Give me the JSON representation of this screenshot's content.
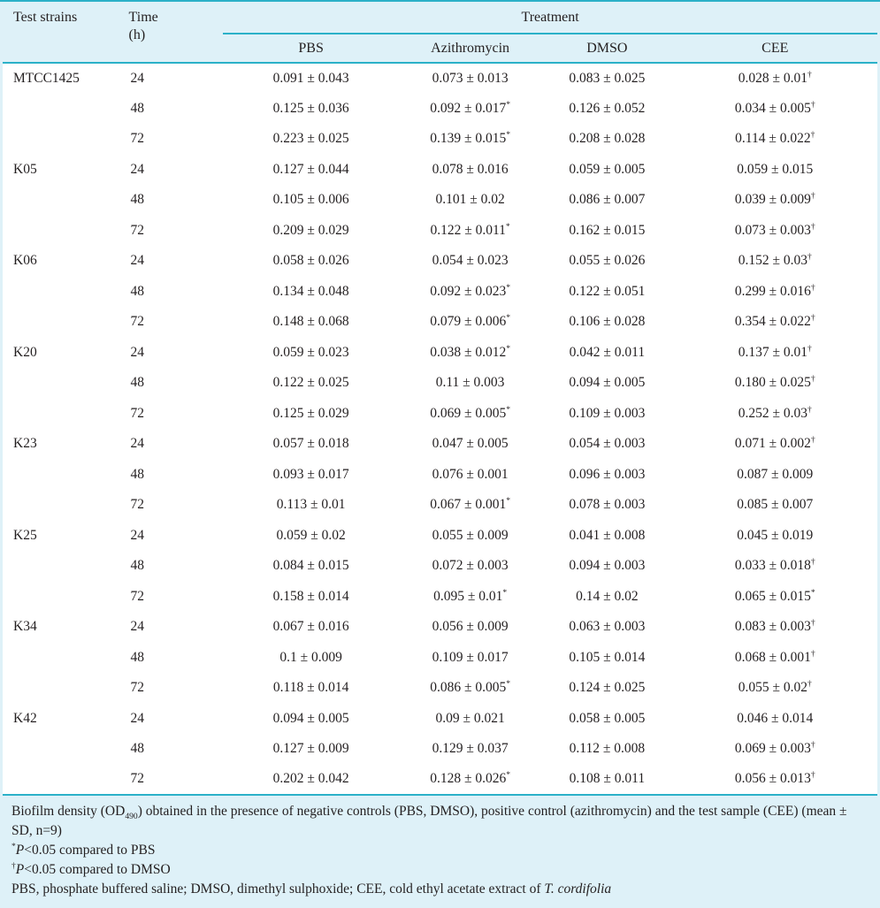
{
  "colors": {
    "accent_teal": "#2bb1c8",
    "panel_bg": "#def1f8",
    "body_bg": "#ffffff",
    "text": "#231f20"
  },
  "table": {
    "header": {
      "strain_col": "Test strains",
      "time_line1": "Time",
      "time_line2": "(h)",
      "treatment_label": "Treatment",
      "treatments": {
        "pbs": "PBS",
        "azithromycin": "Azithromycin",
        "dmso": "DMSO",
        "cee": "CEE"
      }
    },
    "rows": [
      {
        "strain": "MTCC1425",
        "time": "24",
        "values": [
          {
            "v": "0.091 ± 0.043",
            "s": ""
          },
          {
            "v": "0.073 ± 0.013",
            "s": ""
          },
          {
            "v": "0.083 ± 0.025",
            "s": ""
          },
          {
            "v": "0.028 ± 0.01",
            "s": "†"
          }
        ]
      },
      {
        "strain": "",
        "time": "48",
        "values": [
          {
            "v": "0.125 ± 0.036",
            "s": ""
          },
          {
            "v": "0.092 ± 0.017",
            "s": "*"
          },
          {
            "v": "0.126 ± 0.052",
            "s": ""
          },
          {
            "v": "0.034 ± 0.005",
            "s": "†"
          }
        ]
      },
      {
        "strain": "",
        "time": "72",
        "values": [
          {
            "v": "0.223 ± 0.025",
            "s": ""
          },
          {
            "v": "0.139 ± 0.015",
            "s": "*"
          },
          {
            "v": "0.208 ± 0.028",
            "s": ""
          },
          {
            "v": "0.114 ± 0.022",
            "s": "†"
          }
        ]
      },
      {
        "strain": "K05",
        "time": "24",
        "values": [
          {
            "v": "0.127 ± 0.044",
            "s": ""
          },
          {
            "v": "0.078 ± 0.016",
            "s": ""
          },
          {
            "v": "0.059 ± 0.005",
            "s": ""
          },
          {
            "v": "0.059 ± 0.015",
            "s": ""
          }
        ]
      },
      {
        "strain": "",
        "time": "48",
        "values": [
          {
            "v": "0.105 ± 0.006",
            "s": ""
          },
          {
            "v": "0.101 ± 0.02",
            "s": ""
          },
          {
            "v": "0.086 ± 0.007",
            "s": ""
          },
          {
            "v": "0.039 ± 0.009",
            "s": "†"
          }
        ]
      },
      {
        "strain": "",
        "time": "72",
        "values": [
          {
            "v": "0.209 ± 0.029",
            "s": ""
          },
          {
            "v": "0.122 ± 0.011",
            "s": "*"
          },
          {
            "v": "0.162 ± 0.015",
            "s": ""
          },
          {
            "v": "0.073 ± 0.003",
            "s": "†"
          }
        ]
      },
      {
        "strain": "K06",
        "time": "24",
        "values": [
          {
            "v": "0.058 ± 0.026",
            "s": ""
          },
          {
            "v": "0.054 ± 0.023",
            "s": ""
          },
          {
            "v": "0.055 ± 0.026",
            "s": ""
          },
          {
            "v": "0.152 ± 0.03",
            "s": "†"
          }
        ]
      },
      {
        "strain": "",
        "time": "48",
        "values": [
          {
            "v": "0.134 ± 0.048",
            "s": ""
          },
          {
            "v": "0.092 ± 0.023",
            "s": "*"
          },
          {
            "v": "0.122 ± 0.051",
            "s": ""
          },
          {
            "v": "0.299 ± 0.016",
            "s": "†"
          }
        ]
      },
      {
        "strain": "",
        "time": "72",
        "values": [
          {
            "v": "0.148 ± 0.068",
            "s": ""
          },
          {
            "v": "0.079 ± 0.006",
            "s": "*"
          },
          {
            "v": "0.106 ± 0.028",
            "s": ""
          },
          {
            "v": "0.354 ± 0.022",
            "s": "†"
          }
        ]
      },
      {
        "strain": "K20",
        "time": "24",
        "values": [
          {
            "v": "0.059 ± 0.023",
            "s": ""
          },
          {
            "v": "0.038 ± 0.012",
            "s": "*"
          },
          {
            "v": "0.042 ± 0.011",
            "s": ""
          },
          {
            "v": "0.137 ± 0.01",
            "s": "†"
          }
        ]
      },
      {
        "strain": "",
        "time": "48",
        "values": [
          {
            "v": "0.122 ± 0.025",
            "s": ""
          },
          {
            "v": "0.11 ± 0.003",
            "s": ""
          },
          {
            "v": "0.094 ± 0.005",
            "s": ""
          },
          {
            "v": "0.180 ± 0.025",
            "s": "†"
          }
        ]
      },
      {
        "strain": "",
        "time": "72",
        "values": [
          {
            "v": "0.125 ± 0.029",
            "s": ""
          },
          {
            "v": "0.069 ± 0.005",
            "s": "*"
          },
          {
            "v": "0.109 ± 0.003",
            "s": ""
          },
          {
            "v": "0.252 ± 0.03",
            "s": "†"
          }
        ]
      },
      {
        "strain": "K23",
        "time": "24",
        "values": [
          {
            "v": "0.057 ± 0.018",
            "s": ""
          },
          {
            "v": "0.047 ± 0.005",
            "s": ""
          },
          {
            "v": "0.054 ± 0.003",
            "s": ""
          },
          {
            "v": "0.071 ± 0.002",
            "s": "†"
          }
        ]
      },
      {
        "strain": "",
        "time": "48",
        "values": [
          {
            "v": "0.093 ± 0.017",
            "s": ""
          },
          {
            "v": "0.076 ± 0.001",
            "s": ""
          },
          {
            "v": "0.096 ± 0.003",
            "s": ""
          },
          {
            "v": "0.087 ± 0.009",
            "s": ""
          }
        ]
      },
      {
        "strain": "",
        "time": "72",
        "values": [
          {
            "v": "0.113 ± 0.01",
            "s": ""
          },
          {
            "v": "0.067 ± 0.001",
            "s": "*"
          },
          {
            "v": "0.078 ± 0.003",
            "s": ""
          },
          {
            "v": "0.085 ± 0.007",
            "s": ""
          }
        ]
      },
      {
        "strain": "K25",
        "time": "24",
        "values": [
          {
            "v": "0.059 ± 0.02",
            "s": ""
          },
          {
            "v": "0.055 ± 0.009",
            "s": ""
          },
          {
            "v": "0.041 ± 0.008",
            "s": ""
          },
          {
            "v": "0.045 ± 0.019",
            "s": ""
          }
        ]
      },
      {
        "strain": "",
        "time": "48",
        "values": [
          {
            "v": "0.084 ± 0.015",
            "s": ""
          },
          {
            "v": "0.072 ± 0.003",
            "s": ""
          },
          {
            "v": "0.094 ± 0.003",
            "s": ""
          },
          {
            "v": "0.033 ± 0.018",
            "s": "†"
          }
        ]
      },
      {
        "strain": "",
        "time": "72",
        "values": [
          {
            "v": "0.158 ± 0.014",
            "s": ""
          },
          {
            "v": "0.095 ± 0.01",
            "s": "*"
          },
          {
            "v": "0.14 ± 0.02",
            "s": ""
          },
          {
            "v": "0.065 ± 0.015",
            "s": "*"
          }
        ]
      },
      {
        "strain": "K34",
        "time": "24",
        "values": [
          {
            "v": "0.067 ± 0.016",
            "s": ""
          },
          {
            "v": "0.056 ± 0.009",
            "s": ""
          },
          {
            "v": "0.063 ± 0.003",
            "s": ""
          },
          {
            "v": "0.083 ± 0.003",
            "s": "†"
          }
        ]
      },
      {
        "strain": "",
        "time": "48",
        "values": [
          {
            "v": "0.1 ± 0.009",
            "s": ""
          },
          {
            "v": "0.109 ± 0.017",
            "s": ""
          },
          {
            "v": "0.105 ± 0.014",
            "s": ""
          },
          {
            "v": "0.068 ± 0.001",
            "s": "†"
          }
        ]
      },
      {
        "strain": "",
        "time": "72",
        "values": [
          {
            "v": "0.118 ± 0.014",
            "s": ""
          },
          {
            "v": "0.086 ± 0.005",
            "s": "*"
          },
          {
            "v": "0.124 ± 0.025",
            "s": ""
          },
          {
            "v": "0.055 ± 0.02",
            "s": "†"
          }
        ]
      },
      {
        "strain": "K42",
        "time": "24",
        "values": [
          {
            "v": "0.094 ± 0.005",
            "s": ""
          },
          {
            "v": "0.09 ± 0.021",
            "s": ""
          },
          {
            "v": "0.058 ± 0.005",
            "s": ""
          },
          {
            "v": "0.046 ± 0.014",
            "s": ""
          }
        ]
      },
      {
        "strain": "",
        "time": "48",
        "values": [
          {
            "v": "0.127 ± 0.009",
            "s": ""
          },
          {
            "v": "0.129 ± 0.037",
            "s": ""
          },
          {
            "v": "0.112 ± 0.008",
            "s": ""
          },
          {
            "v": "0.069 ± 0.003",
            "s": "†"
          }
        ]
      },
      {
        "strain": "",
        "time": "72",
        "values": [
          {
            "v": "0.202 ± 0.042",
            "s": ""
          },
          {
            "v": "0.128 ± 0.026",
            "s": "*"
          },
          {
            "v": "0.108 ± 0.011",
            "s": ""
          },
          {
            "v": "0.056 ± 0.013",
            "s": "†"
          }
        ]
      }
    ]
  },
  "footnotes": {
    "note1_pre": "Biofilm density (OD",
    "note1_sub": "490",
    "note1_post": ") obtained in the presence of negative controls (PBS, DMSO), positive control (azithromycin) and the test sample (CEE) (mean ± SD, n=9)",
    "note2_sup": "*",
    "note2_p": "P",
    "note2_rest": "<0.05 compared to PBS",
    "note3_sup": "†",
    "note3_p": "P",
    "note3_rest": "<0.05 compared to DMSO",
    "note4_pre": "PBS, phosphate buffered saline; DMSO, dimethyl sulphoxide; CEE, cold ethyl acetate extract of ",
    "note4_italic": "T. cordifolia"
  }
}
